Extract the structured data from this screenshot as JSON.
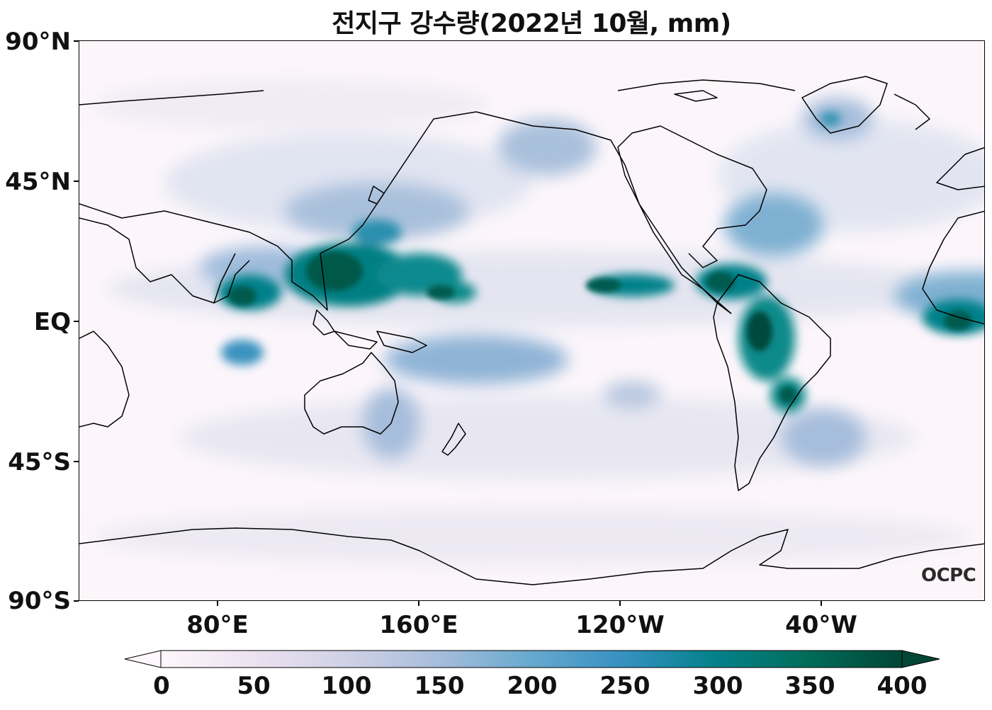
{
  "title": "전지구 강수량(2022년 10월, mm)",
  "lat_labels": [
    "90°N",
    "45°N",
    "EQ",
    "45°S",
    "90°S"
  ],
  "lon_labels": [
    "80°E",
    "160°E",
    "120°W",
    "40°W"
  ],
  "colorbar": {
    "ticks": [
      "0",
      "50",
      "100",
      "150",
      "200",
      "250",
      "300",
      "350",
      "400"
    ],
    "colors": [
      "#fff7fb",
      "#ece2f0",
      "#d0d1e6",
      "#a6bddb",
      "#67a9cf",
      "#3690c0",
      "#02818a",
      "#016c59",
      "#014636"
    ],
    "min": 0,
    "max": 400,
    "extend": "both"
  },
  "logo": "OCPC",
  "map": {
    "projection": "equirectangular",
    "central_longitude": "160°W",
    "lat_range": [
      "90°S",
      "90°N"
    ],
    "variable": "precipitation",
    "units": "mm"
  }
}
